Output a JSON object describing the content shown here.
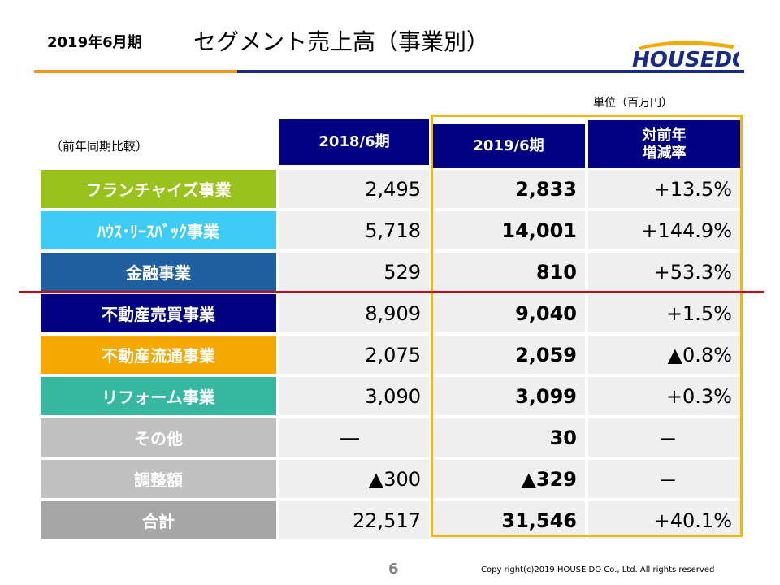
{
  "header": {
    "period": "2019年6月期",
    "title": "セグメント売上高（事業別）",
    "logo_text": "HOUSEDO"
  },
  "unit_label": "単位（百万円）",
  "compare_label": "（前年同期比較）",
  "columns": [
    "2018/6期",
    "2019/6期",
    "対前年\n増減率"
  ],
  "columns_lines": {
    "col3_line1": "対前年",
    "col3_line2": "増減率"
  },
  "rows": [
    {
      "segment": "フランチャイズ事業",
      "color": "#9ac21c",
      "v2018": "2,495",
      "v2019": "2,833",
      "change": "+13.5%"
    },
    {
      "segment": "ﾊｳｽ･ﾘｰｽﾊﾞｯｸ事業",
      "color": "#3ecbf5",
      "v2018": "5,718",
      "v2019": "14,001",
      "change": "+144.9%"
    },
    {
      "segment": "金融事業",
      "color": "#1f5fa0",
      "v2018": "529",
      "v2019": "810",
      "change": "+53.3%"
    },
    {
      "segment": "不動産売買事業",
      "color": "#000080",
      "v2018": "8,909",
      "v2019": "9,040",
      "change": "+1.5%"
    },
    {
      "segment": "不動産流通事業",
      "color": "#f5a800",
      "v2018": "2,075",
      "v2019": "2,059",
      "change": "▲0.8%"
    },
    {
      "segment": "リフォーム事業",
      "color": "#36b8a0",
      "v2018": "3,090",
      "v2019": "3,099",
      "change": "+0.3%"
    },
    {
      "segment": "その他",
      "color": "#c0c0c0",
      "v2018": "―",
      "v2019": "30",
      "change": "－"
    },
    {
      "segment": "調整額",
      "color": "#c0c0c0",
      "v2018": "▲300",
      "v2019": "▲329",
      "change": "－"
    },
    {
      "segment": "合計",
      "color": "#a6a6a6",
      "v2018": "22,517",
      "v2019": "31,546",
      "change": "+40.1%"
    }
  ],
  "footer": {
    "page_number": "6",
    "copyright": "Copy right(c)2019  HOUSE DO Co., Ltd. All rights reserved"
  },
  "colors": {
    "header_bg": "#000080",
    "highlight_box": "#f5b800",
    "divider_line": "#d0021b",
    "rule_orange": "#f0951e",
    "rule_navy": "#1a2a88"
  }
}
